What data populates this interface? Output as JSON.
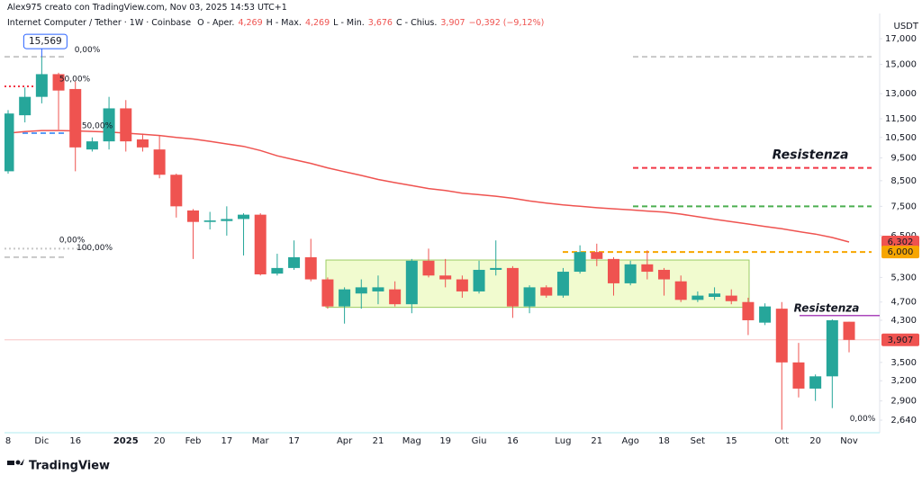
{
  "header": {
    "author": "Alex975 creato con TradingView.com, Nov 03, 2025 14:53 UTC+1",
    "symbol": "Internet Computer / Tether · 1W · Coinbase",
    "ohlc": [
      {
        "key": "O - Aper.",
        "value": "4,269"
      },
      {
        "key": "H - Max.",
        "value": "4,269"
      },
      {
        "key": "L - Min.",
        "value": "3,676"
      },
      {
        "key": "C - Chius.",
        "value": "3,907"
      }
    ],
    "change": "−0,392 (−9,12%)"
  },
  "logo": "TradingView",
  "chart_data": {
    "type": "candlestick",
    "log_scale": true,
    "grid": false,
    "y_unit": "USDT",
    "up_color": "#26a69a",
    "down_color": "#ef5350",
    "categories": [
      "8",
      null,
      "Dic",
      null,
      "16",
      null,
      null,
      "2025",
      null,
      "20",
      null,
      "Feb",
      null,
      "17",
      null,
      "Mar",
      null,
      "17",
      null,
      null,
      "Apr",
      null,
      "21",
      null,
      "Mag",
      null,
      "19",
      null,
      "Giu",
      null,
      "16",
      null,
      null,
      "Lug",
      null,
      "21",
      null,
      "Ago",
      null,
      "18",
      null,
      "Set",
      null,
      "15",
      null,
      null,
      "Ott",
      null,
      "20",
      null,
      "Nov"
    ],
    "open": [
      8.9,
      11.7,
      12.8,
      14.3,
      13.3,
      9.9,
      10.3,
      12.1,
      10.4,
      9.9,
      8.75,
      7.35,
      6.95,
      6.98,
      7.05,
      7.2,
      5.4,
      5.55,
      5.85,
      5.25,
      4.6,
      4.9,
      4.95,
      5.0,
      4.65,
      5.75,
      5.35,
      5.25,
      4.95,
      5.5,
      5.55,
      4.6,
      5.05,
      4.85,
      5.45,
      6.0,
      5.8,
      5.15,
      5.65,
      5.5,
      5.2,
      4.75,
      4.82,
      4.85,
      4.7,
      4.25,
      4.55,
      3.5,
      3.08,
      3.27,
      4.269
    ],
    "high": [
      12.0,
      13.4,
      15.569,
      14.4,
      13.8,
      10.5,
      12.8,
      12.6,
      10.7,
      10.6,
      8.8,
      7.4,
      7.3,
      7.5,
      7.25,
      7.25,
      5.95,
      6.35,
      6.4,
      5.3,
      5.05,
      5.25,
      5.35,
      5.2,
      5.8,
      6.1,
      5.8,
      5.35,
      5.75,
      6.35,
      5.6,
      5.1,
      5.1,
      5.55,
      6.2,
      6.25,
      5.85,
      5.75,
      6.05,
      5.55,
      5.35,
      4.95,
      5.05,
      5.0,
      4.8,
      4.67,
      4.7,
      3.85,
      3.3,
      4.32,
      4.269
    ],
    "low": [
      8.8,
      11.3,
      12.4,
      10.9,
      8.9,
      9.8,
      9.9,
      9.8,
      9.8,
      8.6,
      7.1,
      5.8,
      6.7,
      6.5,
      5.9,
      5.35,
      5.35,
      5.5,
      5.2,
      4.55,
      4.23,
      4.55,
      4.65,
      4.6,
      4.45,
      5.3,
      5.05,
      4.8,
      4.9,
      5.35,
      4.35,
      4.45,
      4.8,
      4.8,
      5.4,
      5.6,
      4.85,
      5.1,
      5.25,
      4.85,
      4.7,
      4.7,
      4.75,
      4.65,
      4.0,
      4.2,
      2.52,
      2.95,
      2.9,
      2.8,
      3.676
    ],
    "close": [
      11.8,
      12.8,
      14.3,
      13.2,
      10.0,
      10.3,
      12.1,
      10.3,
      10.0,
      8.75,
      7.5,
      6.95,
      7.0,
      7.05,
      7.2,
      5.38,
      5.55,
      5.85,
      5.25,
      4.6,
      5.0,
      5.05,
      5.05,
      4.65,
      5.75,
      5.35,
      5.25,
      4.95,
      5.5,
      5.55,
      4.6,
      5.05,
      4.85,
      5.45,
      6.0,
      5.8,
      5.15,
      5.65,
      5.45,
      5.25,
      4.75,
      4.85,
      4.9,
      4.72,
      4.3,
      4.6,
      3.5,
      3.08,
      3.27,
      4.3,
      3.907
    ],
    "ma": {
      "color": "#ef5350",
      "values": [
        10.72,
        10.8,
        10.86,
        10.86,
        10.84,
        10.81,
        10.78,
        10.72,
        10.66,
        10.6,
        10.5,
        10.42,
        10.3,
        10.17,
        10.05,
        9.85,
        9.6,
        9.42,
        9.25,
        9.05,
        8.88,
        8.72,
        8.55,
        8.42,
        8.3,
        8.18,
        8.1,
        8.0,
        7.94,
        7.88,
        7.8,
        7.7,
        7.62,
        7.55,
        7.5,
        7.45,
        7.41,
        7.37,
        7.33,
        7.29,
        7.22,
        7.13,
        7.04,
        6.96,
        6.88,
        6.8,
        6.72,
        6.63,
        6.55,
        6.44,
        6.302
      ]
    },
    "ylim": [
      2.483,
      19.23
    ],
    "yticks": [
      {
        "value": 17,
        "label": "17,000"
      },
      {
        "value": 15,
        "label": "15,000"
      },
      {
        "value": 13,
        "label": "13,000"
      },
      {
        "value": 11.5,
        "label": "11,500"
      },
      {
        "value": 10.5,
        "label": "10,500"
      },
      {
        "value": 9.5,
        "label": "9,500"
      },
      {
        "value": 8.5,
        "label": "8,500"
      },
      {
        "value": 7.5,
        "label": "7,500"
      },
      {
        "value": 6.5,
        "label": "6,500"
      },
      {
        "value": 5.3,
        "label": "5,300"
      },
      {
        "value": 4.7,
        "label": "4,700"
      },
      {
        "value": 4.3,
        "label": "4,300"
      },
      {
        "value": 3.5,
        "label": "3,500"
      },
      {
        "value": 3.2,
        "label": "3,200"
      },
      {
        "value": 2.9,
        "label": "2,900"
      },
      {
        "value": 2.64,
        "label": "2,640"
      }
    ],
    "price_labels": [
      {
        "value": 6.302,
        "label": "6,302",
        "color": "#ef5350"
      },
      {
        "value": 6.0,
        "label": "6,000",
        "color": "#f7a600"
      },
      {
        "value": 3.907,
        "label": "3,907",
        "color": "#ef5350"
      }
    ],
    "high_callout": {
      "value": 15.569,
      "label": "15,569"
    },
    "range_box": [
      4.58,
      5.77
    ],
    "levels": [
      {
        "value": 15.569,
        "color": "#c8c8c8",
        "style": "dashed"
      },
      {
        "value": 13.47,
        "color": "#f23645",
        "style": "dotted"
      },
      {
        "value": 10.72,
        "color": "#5b9cf6",
        "style": "dashed"
      },
      {
        "value": 9.05,
        "color": "#f23645",
        "style": "dashed",
        "label": "Resistenza"
      },
      {
        "value": 7.5,
        "color": "#4caf50",
        "style": "dashed"
      },
      {
        "value": 6.0,
        "color": "#f7a600",
        "style": "dashed"
      },
      {
        "value": 4.4,
        "color": "#ab47bc",
        "style": "solid",
        "label": "Resistenza"
      },
      {
        "value": 6.1,
        "color": "#c8c8c8",
        "style": "dotted"
      },
      {
        "value": 5.85,
        "color": "#c8c8c8",
        "style": "dashed"
      }
    ],
    "fib_labels": [
      {
        "value": 13.95,
        "label": "50,00%",
        "color": "#f23645"
      },
      {
        "value": 11.1,
        "label": "50,00%",
        "color": "#5b9cf6"
      },
      {
        "value": 16.1,
        "label": "0,00%",
        "color": "#d8d8d8"
      },
      {
        "value": 6.35,
        "label": "0,00%",
        "color": "#c8c8c8"
      },
      {
        "value": 6.12,
        "label": "100,00%",
        "color": "#c8c8c8"
      },
      {
        "value": 2.66,
        "label": "0,00%",
        "color": "#b2dfdb"
      }
    ]
  }
}
